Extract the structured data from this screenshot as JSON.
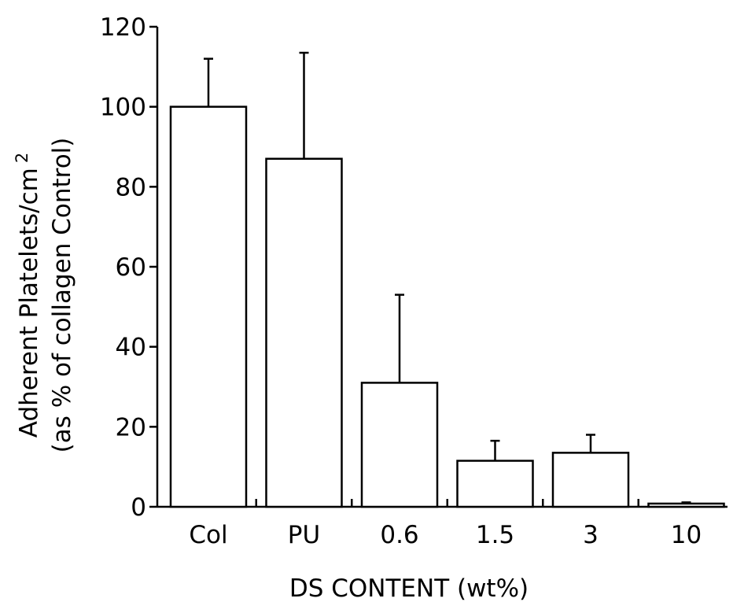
{
  "chart_data": {
    "type": "bar",
    "categories": [
      "Col",
      "PU",
      "0.6",
      "1.5",
      "3",
      "10"
    ],
    "series": [
      {
        "values": [
          100,
          87,
          31,
          11.5,
          13.5,
          0.8
        ],
        "error": [
          12,
          26.5,
          22,
          5,
          4.5,
          0.3
        ]
      }
    ],
    "xlabel": "DS CONTENT (wt%)",
    "ylabel": {
      "line1_main": "Adherent Platelets/cm",
      "line1_sup": "2",
      "line2": "(as % of collagen Control)"
    },
    "ylim": [
      0,
      120
    ],
    "yticks": [
      "0",
      "20",
      "40",
      "60",
      "80",
      "100",
      "120"
    ],
    "grid": false,
    "legend": "none",
    "colors": {
      "bar_fill": "#ffffff",
      "stroke": "#000000"
    }
  }
}
